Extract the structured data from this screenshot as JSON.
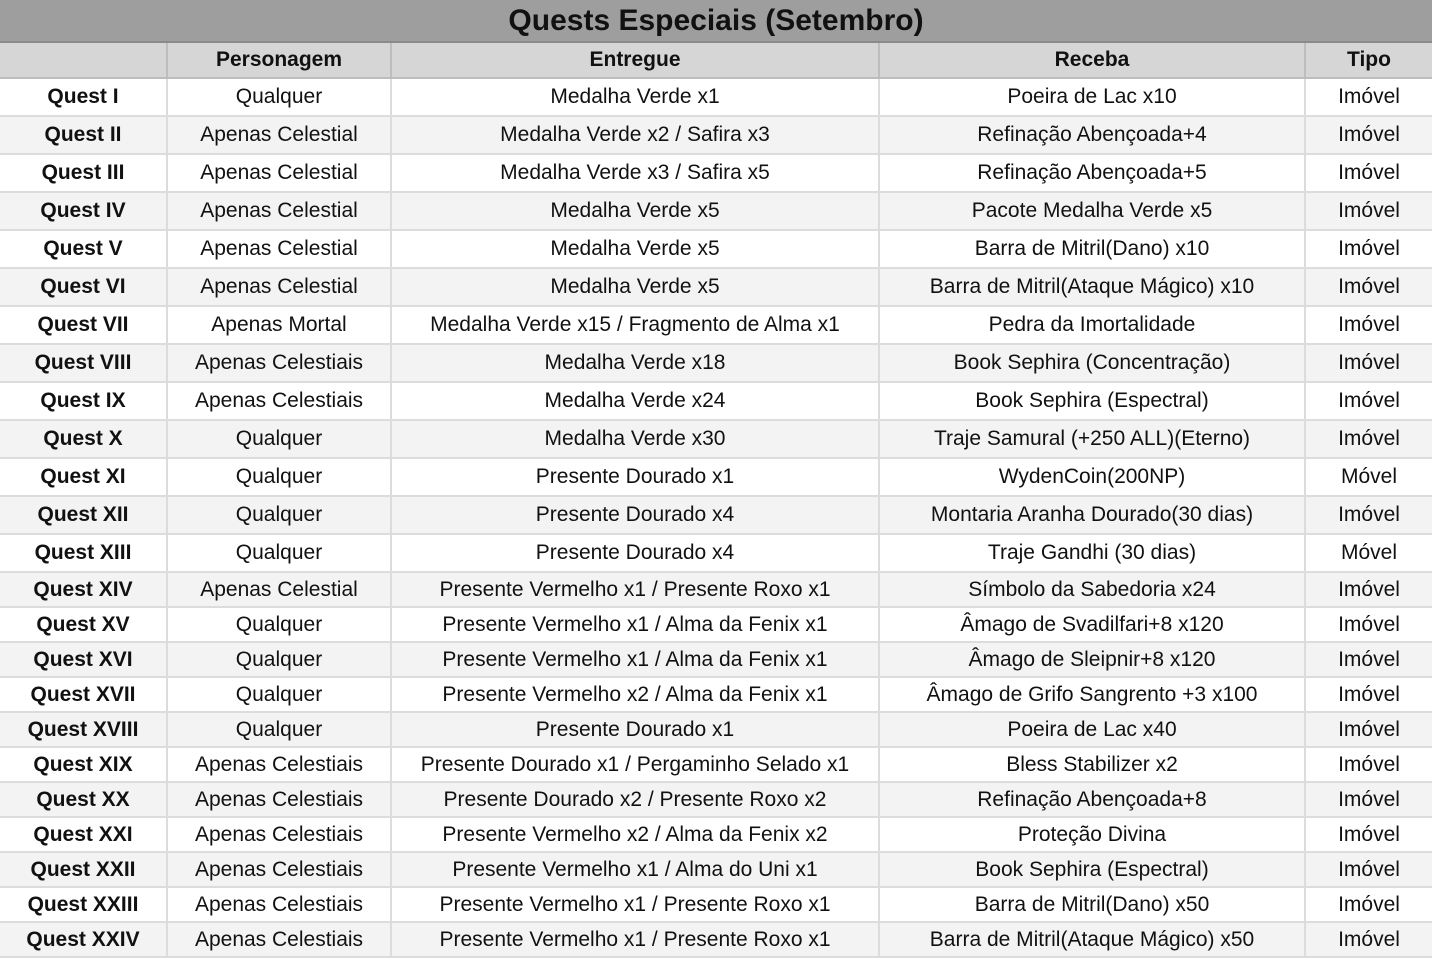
{
  "title": "Quests Especiais (Setembro)",
  "columns": [
    "",
    "Personagem",
    "Entregue",
    "Receba",
    "Tipo"
  ],
  "rows": [
    [
      "Quest I",
      "Qualquer",
      "Medalha Verde x1",
      "Poeira de Lac x10",
      "Imóvel"
    ],
    [
      "Quest II",
      "Apenas Celestial",
      "Medalha Verde x2 / Safira x3",
      "Refinação Abençoada+4",
      "Imóvel"
    ],
    [
      "Quest III",
      "Apenas Celestial",
      "Medalha Verde x3 / Safira x5",
      "Refinação Abençoada+5",
      "Imóvel"
    ],
    [
      "Quest IV",
      "Apenas Celestial",
      "Medalha Verde x5",
      "Pacote Medalha Verde x5",
      "Imóvel"
    ],
    [
      "Quest V",
      "Apenas Celestial",
      "Medalha Verde x5",
      "Barra de Mitril(Dano) x10",
      "Imóvel"
    ],
    [
      "Quest VI",
      "Apenas Celestial",
      "Medalha Verde x5",
      "Barra de Mitril(Ataque Mágico) x10",
      "Imóvel"
    ],
    [
      "Quest VII",
      "Apenas Mortal",
      "Medalha Verde x15 / Fragmento de Alma x1",
      "Pedra da Imortalidade",
      "Imóvel"
    ],
    [
      "Quest VIII",
      "Apenas Celestiais",
      "Medalha Verde x18",
      "Book Sephira (Concentração)",
      "Imóvel"
    ],
    [
      "Quest IX",
      "Apenas Celestiais",
      "Medalha Verde x24",
      "Book Sephira (Espectral)",
      "Imóvel"
    ],
    [
      "Quest X",
      "Qualquer",
      "Medalha Verde x30",
      "Traje Samural (+250 ALL)(Eterno)",
      "Imóvel"
    ],
    [
      "Quest XI",
      "Qualquer",
      "Presente Dourado x1",
      "WydenCoin(200NP)",
      "Móvel"
    ],
    [
      "Quest XII",
      "Qualquer",
      "Presente Dourado x4",
      "Montaria Aranha Dourado(30 dias)",
      "Imóvel"
    ],
    [
      "Quest XIII",
      "Qualquer",
      "Presente Dourado x4",
      "Traje Gandhi (30 dias)",
      "Móvel"
    ],
    [
      "Quest XIV",
      "Apenas Celestial",
      "Presente Vermelho x1 / Presente Roxo x1",
      "Símbolo da Sabedoria x24",
      "Imóvel"
    ],
    [
      "Quest XV",
      "Qualquer",
      "Presente Vermelho x1 / Alma da Fenix x1",
      "Âmago de Svadilfari+8 x120",
      "Imóvel"
    ],
    [
      "Quest XVI",
      "Qualquer",
      "Presente Vermelho x1 / Alma da Fenix x1",
      "Âmago de Sleipnir+8 x120",
      "Imóvel"
    ],
    [
      "Quest XVII",
      "Qualquer",
      "Presente Vermelho x2 / Alma da Fenix x1",
      "Âmago de Grifo Sangrento +3 x100",
      "Imóvel"
    ],
    [
      "Quest XVIII",
      "Qualquer",
      "Presente Dourado x1",
      "Poeira de Lac x40",
      "Imóvel"
    ],
    [
      "Quest XIX",
      "Apenas Celestiais",
      "Presente Dourado x1 / Pergaminho Selado x1",
      "Bless Stabilizer x2",
      "Imóvel"
    ],
    [
      "Quest XX",
      "Apenas Celestiais",
      "Presente Dourado x2 / Presente Roxo x2",
      "Refinação Abençoada+8",
      "Imóvel"
    ],
    [
      "Quest XXI",
      "Apenas Celestiais",
      "Presente Vermelho x2 / Alma da Fenix x2",
      "Proteção Divina",
      "Imóvel"
    ],
    [
      "Quest XXII",
      "Apenas Celestiais",
      "Presente Vermelho x1 / Alma do Uni x1",
      "Book Sephira (Espectral)",
      "Imóvel"
    ],
    [
      "Quest XXIII",
      "Apenas Celestiais",
      "Presente Vermelho x1 / Presente Roxo x1",
      "Barra de Mitril(Dano) x50",
      "Imóvel"
    ],
    [
      "Quest XXIV",
      "Apenas Celestiais",
      "Presente Vermelho x1 / Presente Roxo x1",
      "Barra de Mitril(Ataque Mágico) x50",
      "Imóvel"
    ]
  ]
}
